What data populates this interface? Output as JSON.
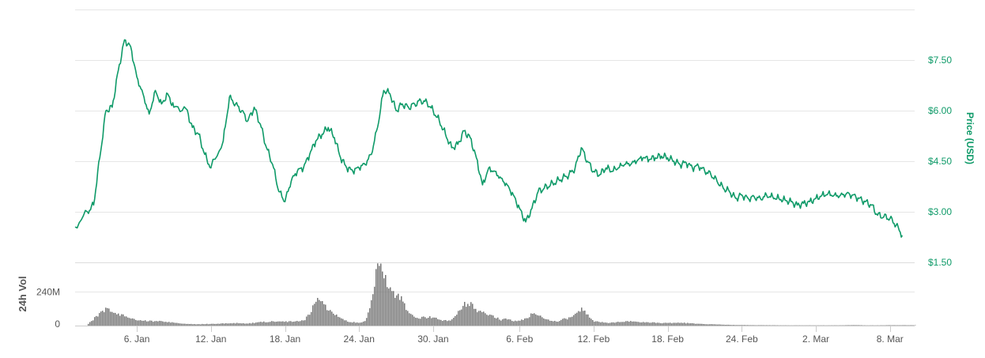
{
  "chart_data": [
    {
      "type": "line",
      "title": "",
      "ylabel": "Price (USD)",
      "ylim": [
        1.5,
        9.0
      ],
      "yticks": [
        1.5,
        3.0,
        4.5,
        6.0,
        7.5
      ],
      "ytick_labels": [
        "$1.50",
        "$3.00",
        "$4.50",
        "$6.00",
        "$7.50"
      ],
      "xlim": [
        "2018-01-01",
        "2018-03-10"
      ],
      "xticks": [
        "2018-01-06",
        "2018-01-12",
        "2018-01-18",
        "2018-01-24",
        "2018-01-30",
        "2018-02-06",
        "2018-02-12",
        "2018-02-18",
        "2018-02-24",
        "2018-03-02",
        "2018-03-08"
      ],
      "xtick_labels": [
        "6. Jan",
        "12. Jan",
        "18. Jan",
        "24. Jan",
        "30. Jan",
        "6. Feb",
        "12. Feb",
        "18. Feb",
        "24. Feb",
        "2. Mar",
        "8. Mar"
      ],
      "grid": true,
      "line_color": "#0e9a68",
      "series": [
        {
          "points": [
            [
              "2018-01-01",
              2.55
            ],
            [
              "2018-01-02",
              3.0
            ],
            [
              "2018-01-02 12:00",
              3.2
            ],
            [
              "2018-01-03",
              4.6
            ],
            [
              "2018-01-03 12:00",
              6.0
            ],
            [
              "2018-01-04",
              6.1
            ],
            [
              "2018-01-04 12:00",
              7.2
            ],
            [
              "2018-01-05",
              8.1
            ],
            [
              "2018-01-05 12:00",
              7.9
            ],
            [
              "2018-01-06",
              7.0
            ],
            [
              "2018-01-06 12:00",
              6.5
            ],
            [
              "2018-01-07",
              5.9
            ],
            [
              "2018-01-07 12:00",
              6.6
            ],
            [
              "2018-01-08",
              6.2
            ],
            [
              "2018-01-08 12:00",
              6.5
            ],
            [
              "2018-01-09",
              6.1
            ],
            [
              "2018-01-10",
              6.05
            ],
            [
              "2018-01-10 12:00",
              5.5
            ],
            [
              "2018-01-11",
              5.3
            ],
            [
              "2018-01-11 12:00",
              4.7
            ],
            [
              "2018-01-12",
              4.3
            ],
            [
              "2018-01-13",
              5.1
            ],
            [
              "2018-01-13 12:00",
              6.4
            ],
            [
              "2018-01-14",
              6.2
            ],
            [
              "2018-01-14 12:00",
              6.0
            ],
            [
              "2018-01-15",
              5.7
            ],
            [
              "2018-01-15 12:00",
              6.1
            ],
            [
              "2018-01-16",
              5.6
            ],
            [
              "2018-01-16 12:00",
              4.9
            ],
            [
              "2018-01-17",
              4.4
            ],
            [
              "2018-01-17 12:00",
              3.6
            ],
            [
              "2018-01-18",
              3.3
            ],
            [
              "2018-01-18 12:00",
              3.9
            ],
            [
              "2018-01-19",
              4.2
            ],
            [
              "2018-01-19 12:00",
              4.3
            ],
            [
              "2018-01-20",
              4.7
            ],
            [
              "2018-01-20 12:00",
              5.1
            ],
            [
              "2018-01-21",
              5.3
            ],
            [
              "2018-01-21 12:00",
              5.5
            ],
            [
              "2018-01-22",
              5.2
            ],
            [
              "2018-01-22 12:00",
              4.6
            ],
            [
              "2018-01-23",
              4.3
            ],
            [
              "2018-01-23 12:00",
              4.2
            ],
            [
              "2018-01-24",
              4.3
            ],
            [
              "2018-01-24 12:00",
              4.4
            ],
            [
              "2018-01-25",
              4.7
            ],
            [
              "2018-01-25 12:00",
              5.5
            ],
            [
              "2018-01-26",
              6.6
            ],
            [
              "2018-01-26 12:00",
              6.5
            ],
            [
              "2018-01-27",
              6.0
            ],
            [
              "2018-01-27 12:00",
              6.2
            ],
            [
              "2018-01-28",
              6.1
            ],
            [
              "2018-01-28 12:00",
              6.2
            ],
            [
              "2018-01-29",
              6.3
            ],
            [
              "2018-01-29 12:00",
              6.25
            ],
            [
              "2018-01-30",
              6.0
            ],
            [
              "2018-01-30 12:00",
              5.7
            ],
            [
              "2018-01-31",
              5.3
            ],
            [
              "2018-01-31 12:00",
              4.9
            ],
            [
              "2018-02-01",
              5.0
            ],
            [
              "2018-02-01 12:00",
              5.4
            ],
            [
              "2018-02-02",
              5.2
            ],
            [
              "2018-02-02 12:00",
              4.6
            ],
            [
              "2018-02-03",
              3.8
            ],
            [
              "2018-02-03 12:00",
              4.3
            ],
            [
              "2018-02-04",
              4.2
            ],
            [
              "2018-02-04 12:00",
              4.0
            ],
            [
              "2018-02-05",
              3.8
            ],
            [
              "2018-02-05 12:00",
              3.5
            ],
            [
              "2018-02-06",
              3.1
            ],
            [
              "2018-02-06 12:00",
              2.7
            ],
            [
              "2018-02-07",
              3.1
            ],
            [
              "2018-02-07 12:00",
              3.6
            ],
            [
              "2018-02-08",
              3.7
            ],
            [
              "2018-02-08 12:00",
              3.8
            ],
            [
              "2018-02-09",
              3.9
            ],
            [
              "2018-02-09 12:00",
              4.0
            ],
            [
              "2018-02-10",
              4.1
            ],
            [
              "2018-02-10 12:00",
              4.3
            ],
            [
              "2018-02-11",
              4.9
            ],
            [
              "2018-02-11 12:00",
              4.5
            ],
            [
              "2018-02-12",
              4.2
            ],
            [
              "2018-02-12 12:00",
              4.1
            ],
            [
              "2018-02-13",
              4.3
            ],
            [
              "2018-02-13 12:00",
              4.2
            ],
            [
              "2018-02-14",
              4.3
            ],
            [
              "2018-02-14 12:00",
              4.4
            ],
            [
              "2018-02-15",
              4.4
            ],
            [
              "2018-02-15 12:00",
              4.5
            ],
            [
              "2018-02-16",
              4.6
            ],
            [
              "2018-02-16 12:00",
              4.55
            ],
            [
              "2018-02-17",
              4.6
            ],
            [
              "2018-02-17 12:00",
              4.65
            ],
            [
              "2018-02-18",
              4.6
            ],
            [
              "2018-02-18 12:00",
              4.5
            ],
            [
              "2018-02-19",
              4.4
            ],
            [
              "2018-02-19 12:00",
              4.45
            ],
            [
              "2018-02-20",
              4.3
            ],
            [
              "2018-02-20 12:00",
              4.35
            ],
            [
              "2018-02-21",
              4.2
            ],
            [
              "2018-02-21 12:00",
              4.1
            ],
            [
              "2018-02-22",
              3.9
            ],
            [
              "2018-02-22 12:00",
              3.7
            ],
            [
              "2018-02-23",
              3.6
            ],
            [
              "2018-02-23 12:00",
              3.4
            ],
            [
              "2018-02-24",
              3.5
            ],
            [
              "2018-02-24 12:00",
              3.4
            ],
            [
              "2018-02-25",
              3.45
            ],
            [
              "2018-02-25 12:00",
              3.4
            ],
            [
              "2018-02-26",
              3.5
            ],
            [
              "2018-02-26 12:00",
              3.45
            ],
            [
              "2018-02-27",
              3.4
            ],
            [
              "2018-02-27 12:00",
              3.35
            ],
            [
              "2018-02-28",
              3.3
            ],
            [
              "2018-02-28 12:00",
              3.2
            ],
            [
              "2018-03-01",
              3.25
            ],
            [
              "2018-03-01 12:00",
              3.3
            ],
            [
              "2018-03-02",
              3.4
            ],
            [
              "2018-03-02 12:00",
              3.5
            ],
            [
              "2018-03-03",
              3.55
            ],
            [
              "2018-03-03 12:00",
              3.5
            ],
            [
              "2018-03-04",
              3.5
            ],
            [
              "2018-03-04 12:00",
              3.55
            ],
            [
              "2018-03-05",
              3.5
            ],
            [
              "2018-03-05 12:00",
              3.4
            ],
            [
              "2018-03-06",
              3.3
            ],
            [
              "2018-03-06 12:00",
              3.2
            ],
            [
              "2018-03-07",
              2.9
            ],
            [
              "2018-03-07 12:00",
              2.85
            ],
            [
              "2018-03-08",
              2.8
            ],
            [
              "2018-03-08 12:00",
              2.6
            ],
            [
              "2018-03-09",
              2.3
            ]
          ]
        }
      ]
    },
    {
      "type": "bar",
      "title": "",
      "ylabel": "24h Vol",
      "ylim": [
        0,
        450
      ],
      "yticks": [
        0,
        240
      ],
      "ytick_labels": [
        "0",
        "240M"
      ],
      "xlim": [
        "2018-01-01",
        "2018-03-10"
      ],
      "grid": true,
      "bar_color": "#777777",
      "series": [
        {
          "points": [
            [
              "2018-01-02",
              10
            ],
            [
              "2018-01-02 12:00",
              50
            ],
            [
              "2018-01-03",
              90
            ],
            [
              "2018-01-03 12:00",
              115
            ],
            [
              "2018-01-04",
              105
            ],
            [
              "2018-01-04 12:00",
              85
            ],
            [
              "2018-01-05",
              65
            ],
            [
              "2018-01-05 12:00",
              50
            ],
            [
              "2018-01-06",
              40
            ],
            [
              "2018-01-06 12:00",
              35
            ],
            [
              "2018-01-07",
              33
            ],
            [
              "2018-01-07 12:00",
              30
            ],
            [
              "2018-01-08",
              32
            ],
            [
              "2018-01-08 12:00",
              25
            ],
            [
              "2018-01-09",
              20
            ],
            [
              "2018-01-09 12:00",
              15
            ],
            [
              "2018-01-10",
              12
            ],
            [
              "2018-01-11",
              10
            ],
            [
              "2018-01-12",
              12
            ],
            [
              "2018-01-13",
              15
            ],
            [
              "2018-01-14",
              18
            ],
            [
              "2018-01-15",
              15
            ],
            [
              "2018-01-16",
              25
            ],
            [
              "2018-01-17",
              30
            ],
            [
              "2018-01-18",
              28
            ],
            [
              "2018-01-19",
              30
            ],
            [
              "2018-01-19 12:00",
              35
            ],
            [
              "2018-01-20",
              90
            ],
            [
              "2018-01-20 12:00",
              190
            ],
            [
              "2018-01-21",
              160
            ],
            [
              "2018-01-21 12:00",
              110
            ],
            [
              "2018-01-22",
              80
            ],
            [
              "2018-01-22 12:00",
              60
            ],
            [
              "2018-01-23",
              30
            ],
            [
              "2018-01-24",
              20
            ],
            [
              "2018-01-24 12:00",
              30
            ],
            [
              "2018-01-25",
              210
            ],
            [
              "2018-01-25 12:00",
              440
            ],
            [
              "2018-01-26",
              360
            ],
            [
              "2018-01-26 12:00",
              260
            ],
            [
              "2018-01-27",
              220
            ],
            [
              "2018-01-27 12:00",
              180
            ],
            [
              "2018-01-28",
              80
            ],
            [
              "2018-01-28 12:00",
              60
            ],
            [
              "2018-01-29",
              55
            ],
            [
              "2018-01-29 12:00",
              60
            ],
            [
              "2018-01-30",
              55
            ],
            [
              "2018-01-30 12:00",
              40
            ],
            [
              "2018-01-31",
              35
            ],
            [
              "2018-01-31 12:00",
              40
            ],
            [
              "2018-02-01",
              100
            ],
            [
              "2018-02-01 12:00",
              160
            ],
            [
              "2018-02-02",
              150
            ],
            [
              "2018-02-02 12:00",
              110
            ],
            [
              "2018-02-03",
              90
            ],
            [
              "2018-02-03 12:00",
              70
            ],
            [
              "2018-02-04",
              60
            ],
            [
              "2018-02-04 12:00",
              40
            ],
            [
              "2018-02-05",
              50
            ],
            [
              "2018-02-05 12:00",
              30
            ],
            [
              "2018-02-06",
              35
            ],
            [
              "2018-02-06 12:00",
              50
            ],
            [
              "2018-02-07",
              85
            ],
            [
              "2018-02-07 12:00",
              70
            ],
            [
              "2018-02-08",
              50
            ],
            [
              "2018-02-08 12:00",
              35
            ],
            [
              "2018-02-09",
              30
            ],
            [
              "2018-02-09 12:00",
              45
            ],
            [
              "2018-02-10",
              55
            ],
            [
              "2018-02-10 12:00",
              90
            ],
            [
              "2018-02-11",
              115
            ],
            [
              "2018-02-11 12:00",
              70
            ],
            [
              "2018-02-12",
              30
            ],
            [
              "2018-02-12 12:00",
              25
            ],
            [
              "2018-02-13",
              20
            ],
            [
              "2018-02-14",
              25
            ],
            [
              "2018-02-15",
              30
            ],
            [
              "2018-02-16",
              25
            ],
            [
              "2018-02-17",
              20
            ],
            [
              "2018-02-18",
              18
            ],
            [
              "2018-02-19",
              20
            ],
            [
              "2018-02-20",
              15
            ],
            [
              "2018-02-21",
              10
            ],
            [
              "2018-02-22",
              8
            ],
            [
              "2018-02-23",
              5
            ],
            [
              "2018-02-24",
              4
            ],
            [
              "2018-02-25",
              3
            ],
            [
              "2018-02-26",
              3
            ],
            [
              "2018-02-27",
              2
            ],
            [
              "2018-02-28",
              2
            ],
            [
              "2018-03-01",
              2
            ],
            [
              "2018-03-02",
              2
            ],
            [
              "2018-03-03",
              2
            ],
            [
              "2018-03-04",
              2
            ],
            [
              "2018-03-05",
              4
            ],
            [
              "2018-03-06",
              2
            ],
            [
              "2018-03-07",
              2
            ],
            [
              "2018-03-08",
              3
            ],
            [
              "2018-03-09",
              3
            ]
          ]
        }
      ]
    }
  ]
}
